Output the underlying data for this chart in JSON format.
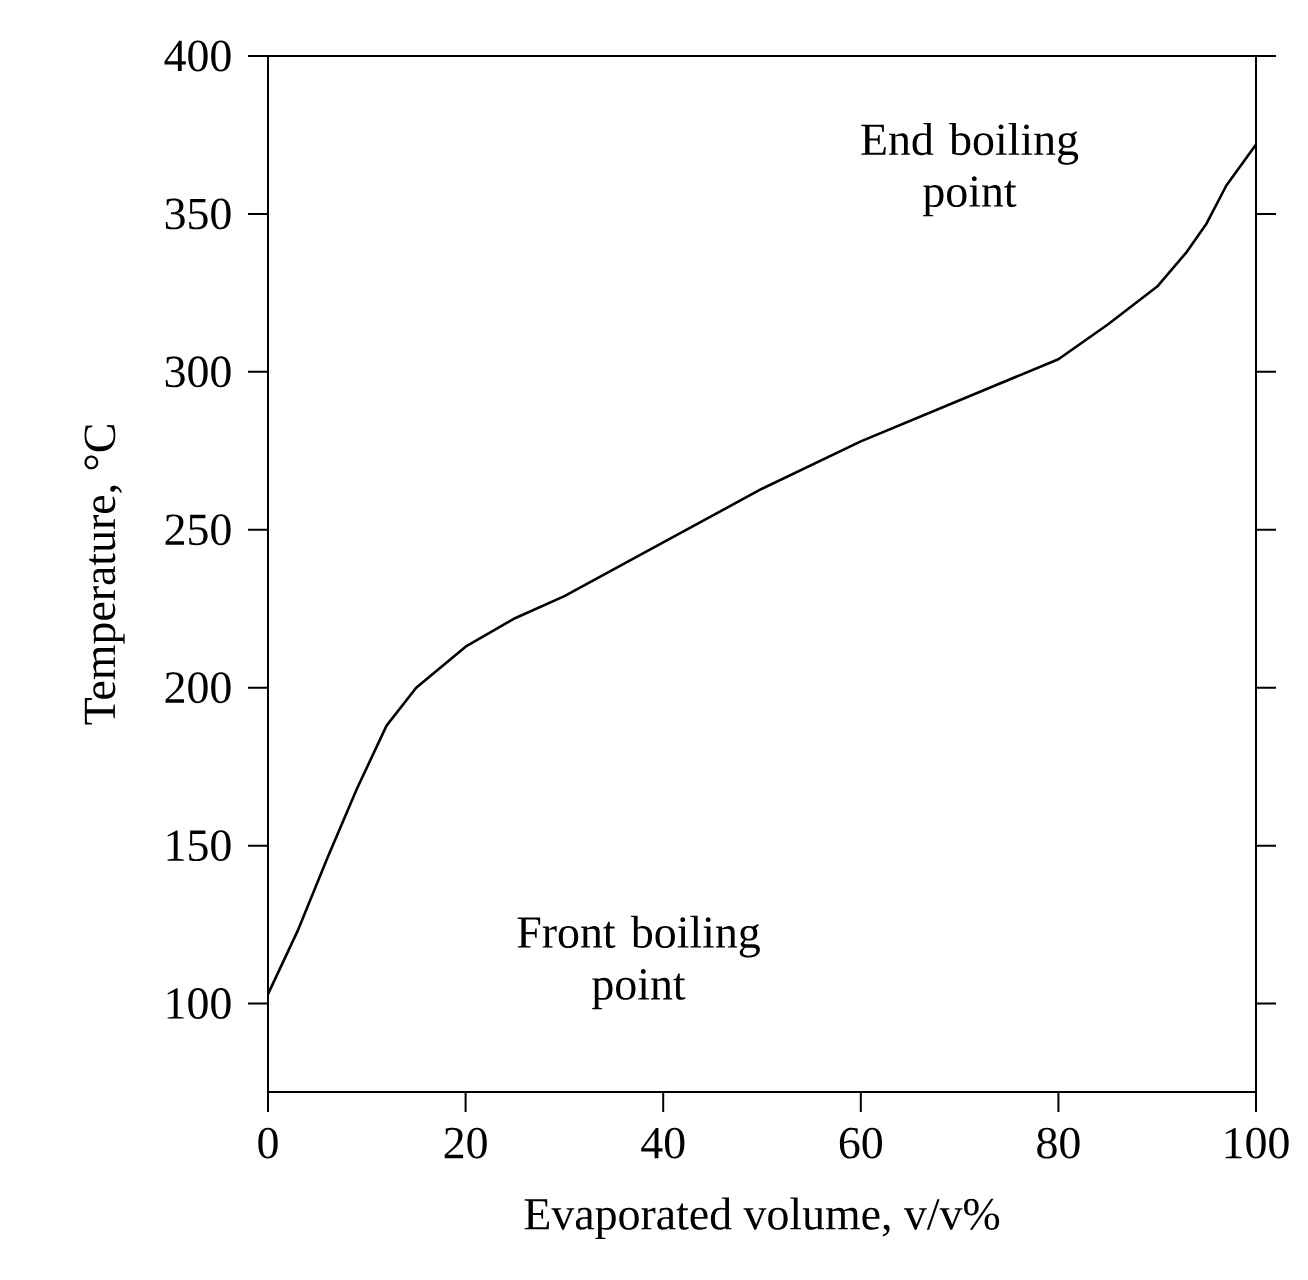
{
  "chart_data": {
    "type": "line",
    "xlabel": "Evaporated volume, v/v%",
    "ylabel": "Temperature, °C",
    "x": [
      0,
      3,
      6,
      9,
      12,
      15,
      20,
      25,
      30,
      40,
      50,
      60,
      70,
      80,
      85,
      90,
      93,
      95,
      97,
      100
    ],
    "series": [
      {
        "color": "#000000",
        "values": [
          103,
          123,
          146,
          168,
          188,
          200,
          213,
          222,
          229,
          246,
          263,
          278,
          291,
          304,
          315,
          327,
          338,
          347,
          359,
          372
        ]
      }
    ],
    "xlim": [
      0,
      100
    ],
    "ylim": [
      72,
      400
    ],
    "xticks": [
      0,
      20,
      40,
      60,
      80,
      100
    ],
    "yticks": [
      100,
      150,
      200,
      250,
      300,
      350,
      400
    ],
    "annotations": [
      "End boiling point",
      "Front boiling point"
    ],
    "grid": false,
    "marker": "none",
    "line_style": "solid"
  }
}
